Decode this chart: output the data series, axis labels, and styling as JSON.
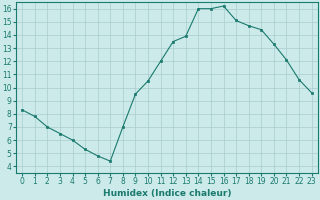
{
  "title": "",
  "xlabel": "Humidex (Indice chaleur)",
  "ylabel": "",
  "x": [
    0,
    1,
    2,
    3,
    4,
    5,
    6,
    7,
    8,
    9,
    10,
    11,
    12,
    13,
    14,
    15,
    16,
    17,
    18,
    19,
    20,
    21,
    22,
    23
  ],
  "y": [
    8.3,
    7.8,
    7.0,
    6.5,
    6.0,
    5.3,
    4.8,
    4.4,
    7.0,
    9.5,
    10.5,
    12.0,
    13.5,
    13.9,
    16.0,
    16.0,
    16.2,
    15.1,
    14.7,
    14.4,
    13.3,
    12.1,
    10.6,
    9.6
  ],
  "line_color": "#1a7a6e",
  "marker": "s",
  "marker_size": 2.0,
  "bg_color": "#cceaea",
  "grid_color": "#aacccc",
  "xlim": [
    -0.5,
    23.5
  ],
  "ylim": [
    3.5,
    16.5
  ],
  "yticks": [
    4,
    5,
    6,
    7,
    8,
    9,
    10,
    11,
    12,
    13,
    14,
    15,
    16
  ],
  "xticks": [
    0,
    1,
    2,
    3,
    4,
    5,
    6,
    7,
    8,
    9,
    10,
    11,
    12,
    13,
    14,
    15,
    16,
    17,
    18,
    19,
    20,
    21,
    22,
    23
  ],
  "label_fontsize": 6.5,
  "tick_fontsize": 5.5
}
